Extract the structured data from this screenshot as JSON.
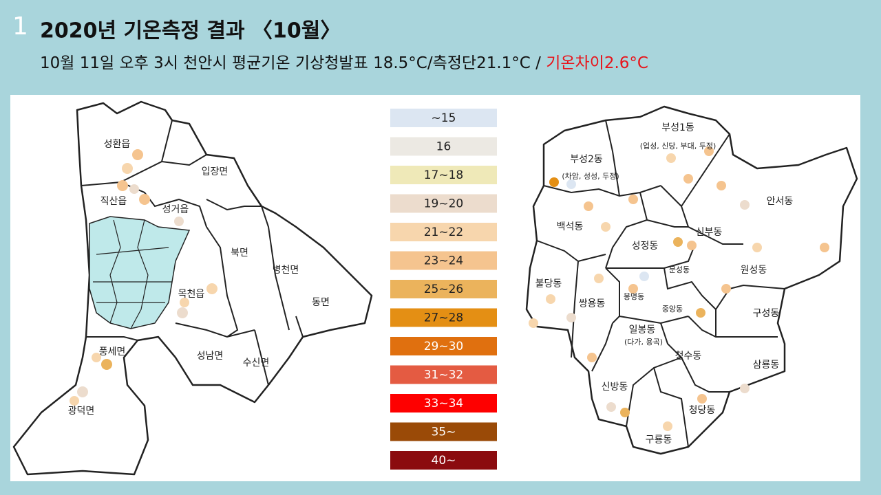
{
  "slide_number": "1",
  "title": "2020년 기온측정 결과 〈10월〉",
  "subtitle": {
    "text": "10월 11일 오후 3시 천안시 평균기온 기상청발표 18.5°C/측정단21.1°C / ",
    "highlight": "기온차이2.6°C"
  },
  "legend": [
    {
      "label": "~15",
      "color": "#dce6f2"
    },
    {
      "label": "16",
      "color": "#ece9e3"
    },
    {
      "label": "17~18",
      "color": "#efe9b8"
    },
    {
      "label": "19~20",
      "color": "#ecdccd"
    },
    {
      "label": "21~22",
      "color": "#f7d6ad"
    },
    {
      "label": "23~24",
      "color": "#f5c48f"
    },
    {
      "label": "25~26",
      "color": "#ebb35c"
    },
    {
      "label": "27~28",
      "color": "#e48f14"
    },
    {
      "label": "29~30",
      "color": "#e0700f"
    },
    {
      "label": "31~32",
      "color": "#e45b42"
    },
    {
      "label": "33~34",
      "color": "#fe0000"
    },
    {
      "label": "35~",
      "color": "#9a4a07"
    },
    {
      "label": "40~",
      "color": "#8b0b0f"
    }
  ],
  "west_map": {
    "regions": [
      "성환읍",
      "입장면",
      "직산읍",
      "성거읍",
      "북면",
      "병천면",
      "목천읍",
      "동면",
      "풍세면",
      "성남면",
      "수신면",
      "광덕면"
    ]
  },
  "east_map": {
    "regions": [
      "부성1동",
      "(업성, 신당, 부대, 두정)",
      "부성2동",
      "(차암, 성성, 두정)",
      "안서동",
      "백석동",
      "신부동",
      "성정동",
      "문성동",
      "원성동",
      "불당동",
      "봉명동",
      "쌍용동",
      "중앙동",
      "구성동",
      "일봉동",
      "(다가, 용곡)",
      "청수동",
      "삼룡동",
      "신방동",
      "청당동",
      "구룡동"
    ]
  }
}
